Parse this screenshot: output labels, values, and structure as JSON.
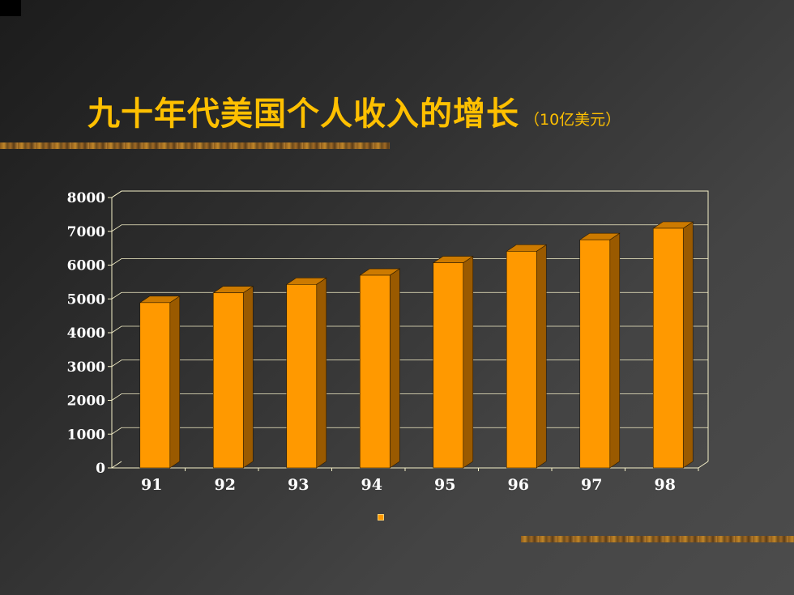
{
  "title": "九十年代美国个人收入的增长",
  "unit": "（10亿美元）",
  "chart_data": {
    "type": "bar",
    "title": "九十年代美国个人收入的增长",
    "subtitle": "（10亿美元）",
    "categories": [
      "91",
      "92",
      "93",
      "94",
      "95",
      "96",
      "97",
      "98"
    ],
    "values": [
      4890,
      5180,
      5430,
      5700,
      6070,
      6410,
      6750,
      7090
    ],
    "ylim": [
      0,
      8000
    ],
    "yticks": [
      "0",
      "1000",
      "2000",
      "3000",
      "4000",
      "5000",
      "6000",
      "7000",
      "8000"
    ],
    "grid": true,
    "style": "3d-bar",
    "colors": {
      "bar_front": "#ff9900",
      "bar_side": "#9a5a00",
      "bar_top": "#cc7a00",
      "axis": "#f5f0c8"
    }
  }
}
